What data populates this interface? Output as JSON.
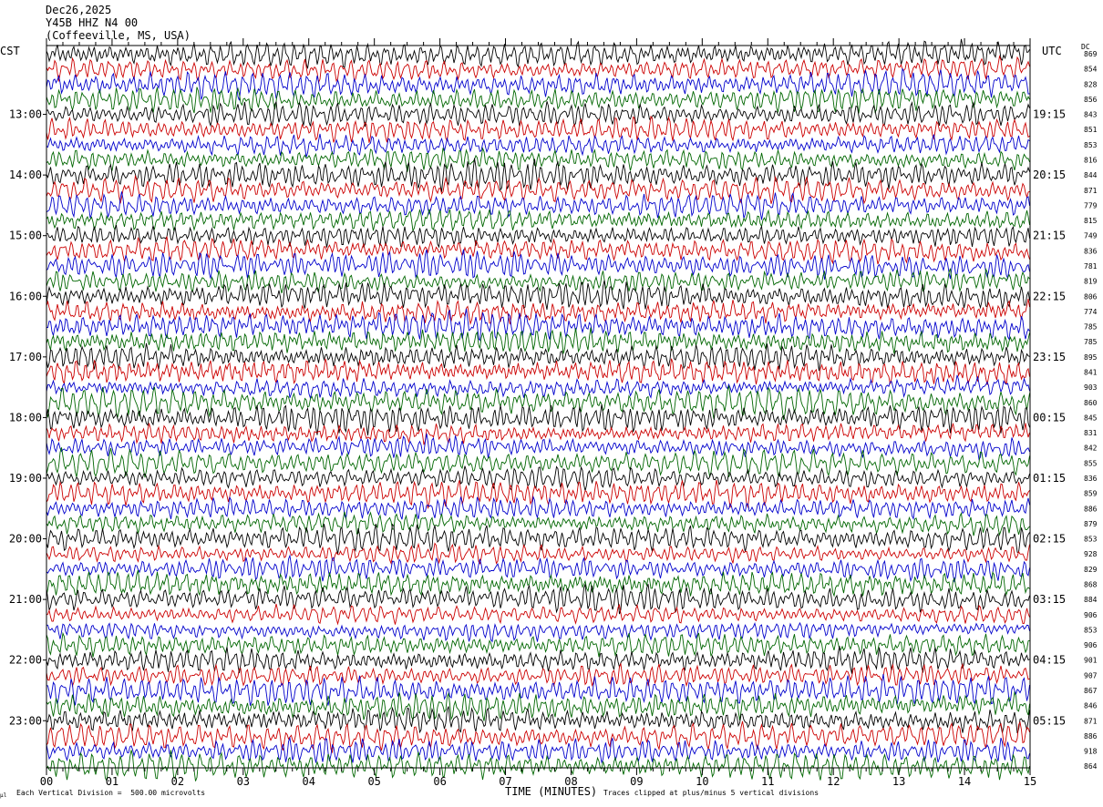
{
  "chart_data": {
    "type": "line",
    "title": "Dec26,2025",
    "station": "Y45B HHZ N4 00",
    "location": "(Coffeeville, MS, USA)",
    "left_axis_label": "CST",
    "right_axis_label": "UTC",
    "dc_label": "DC",
    "xlabel": "TIME (MINUTES)",
    "x_ticks": [
      "00",
      "01",
      "02",
      "03",
      "04",
      "05",
      "06",
      "07",
      "08",
      "09",
      "10",
      "11",
      "12",
      "13",
      "14",
      "15"
    ],
    "xlim": [
      0,
      15
    ],
    "left_time_labels": [
      "13:00",
      "14:00",
      "15:00",
      "16:00",
      "17:00",
      "18:00",
      "19:00",
      "20:00",
      "21:00",
      "22:00",
      "23:00"
    ],
    "right_time_labels": [
      "19:15",
      "20:15",
      "21:15",
      "22:15",
      "23:15",
      "00:15",
      "01:15",
      "02:15",
      "03:15",
      "04:15",
      "05:15"
    ],
    "dc_values": [
      "869",
      "854",
      "828",
      "856",
      "843",
      "851",
      "853",
      "816",
      "844",
      "871",
      "779",
      "815",
      "749",
      "836",
      "781",
      "819",
      "806",
      "774",
      "785",
      "785",
      "895",
      "841",
      "903",
      "860",
      "845",
      "831",
      "842",
      "855",
      "836",
      "859",
      "886",
      "879",
      "853",
      "928",
      "829",
      "868",
      "884",
      "906",
      "853",
      "906",
      "901",
      "907",
      "867",
      "846",
      "871",
      "886",
      "918",
      "864"
    ],
    "trace_colors": [
      "#000000",
      "#cc0000",
      "#0000cc",
      "#006600"
    ],
    "footer_left": "Each Vertical Division =  500.00 microvolts",
    "footer_right": "Traces clipped at plus/minus 5 vertical divisions",
    "stamp": "μl"
  }
}
